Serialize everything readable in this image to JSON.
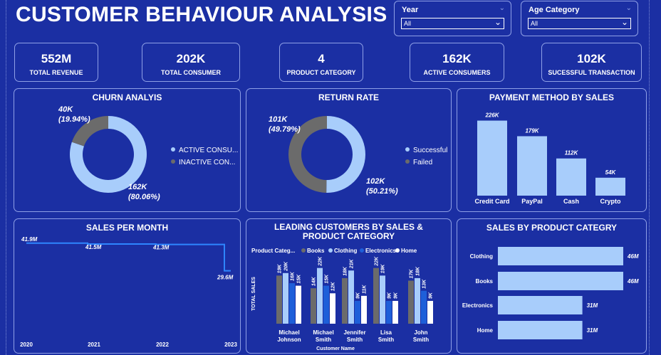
{
  "title": "CUSTOMER BEHAVIOUR ANALYSIS",
  "slicers": [
    {
      "label": "Year",
      "value": "All"
    },
    {
      "label": "Age Category",
      "value": "All"
    }
  ],
  "kpis": [
    {
      "value": "552M",
      "label": "TOTAL REVENUE"
    },
    {
      "value": "202K",
      "label": "TOTAL CONSUMER"
    },
    {
      "value": "4",
      "label": "PRODUCT CATEGORY"
    },
    {
      "value": "162K",
      "label": "ACTIVE CONSUMERS"
    },
    {
      "value": "102K",
      "label": "SUCESSFUL TRANSACTION"
    }
  ],
  "colors": {
    "background": "#1b2fa3",
    "light_blue": "#a8cdfb",
    "gray": "#6b6b6b",
    "mid_blue": "#4a93f2",
    "deep_blue": "#1e5fd9",
    "white": "#ffffff",
    "line": "#2e86ff"
  },
  "chart_data": [
    {
      "type": "pie",
      "donut": true,
      "title": "CHURN ANALYIS",
      "slices": [
        {
          "name": "ACTIVE CONSU...",
          "value": 162,
          "value_label": "162K",
          "pct_label": "(80.06%)",
          "color": "#a8cdfb"
        },
        {
          "name": "INACTIVE CON...",
          "value": 40,
          "value_label": "40K",
          "pct_label": "(19.94%)",
          "color": "#6b6b6b"
        }
      ],
      "legend": "right"
    },
    {
      "type": "pie",
      "donut": true,
      "title": "RETURN RATE",
      "slices": [
        {
          "name": "Successful",
          "value": 102,
          "value_label": "102K",
          "pct_label": "(50.21%)",
          "color": "#a8cdfb"
        },
        {
          "name": "Failed",
          "value": 101,
          "value_label": "101K",
          "pct_label": "(49.79%)",
          "color": "#6b6b6b"
        }
      ],
      "legend": "right"
    },
    {
      "type": "bar",
      "title": "PAYMENT METHOD BY SALES",
      "categories": [
        "Credit Card",
        "PayPal",
        "Cash",
        "Crypto"
      ],
      "values": [
        226,
        179,
        112,
        54
      ],
      "labels": [
        "226K",
        "179K",
        "112K",
        "54K"
      ],
      "ylim": [
        0,
        240
      ]
    },
    {
      "type": "line",
      "title": "SALES PER MONTH",
      "x": [
        "2020",
        "2021",
        "2022",
        "2023"
      ],
      "values": [
        41.9,
        41.5,
        41.3,
        29.6
      ],
      "labels": [
        "41.9M",
        "41.5M",
        "41.3M",
        "29.6M"
      ],
      "ylim": [
        0,
        45
      ]
    },
    {
      "type": "bar",
      "title": "LEADING CUSTOMERS BY SALES & PRODUCT CATEGORY",
      "legend_title": "Product Categ...",
      "categories": [
        "Michael Johnson",
        "Michael Smith",
        "Jennifer Smith",
        "Lisa Smith",
        "John Smith"
      ],
      "xlabel": "Customer Name",
      "ylabel": "TOTAL SALES",
      "series": [
        {
          "name": "Books",
          "color": "#6b6b6b",
          "values": [
            19,
            14,
            18,
            22,
            17
          ],
          "labels": [
            "19K",
            "14K",
            "18K",
            "22K",
            "17K"
          ]
        },
        {
          "name": "Clothing",
          "color": "#a8cdfb",
          "values": [
            20,
            22,
            21,
            19,
            18
          ],
          "labels": [
            "20K",
            "22K",
            "21K",
            "19K",
            "18K"
          ]
        },
        {
          "name": "Electronics",
          "color": "#1e5fd9",
          "values": [
            16,
            15,
            9,
            9,
            13
          ],
          "labels": [
            "16K",
            "15K",
            "9K",
            "9K",
            "13K"
          ]
        },
        {
          "name": "Home",
          "color": "#ffffff",
          "values": [
            15,
            12,
            11,
            9,
            9
          ],
          "labels": [
            "15K",
            "12K",
            "11K",
            "9K",
            "9K"
          ]
        }
      ],
      "ylim": [
        0,
        25
      ]
    },
    {
      "type": "bar",
      "orientation": "horizontal",
      "title": "SALES BY PRODUCT CATEGRY",
      "categories": [
        "Clothing",
        "Books",
        "Electronics",
        "Home"
      ],
      "values": [
        46,
        46,
        31,
        31
      ],
      "labels": [
        "46M",
        "46M",
        "31M",
        "31M"
      ],
      "xlim": [
        0,
        46
      ]
    }
  ]
}
